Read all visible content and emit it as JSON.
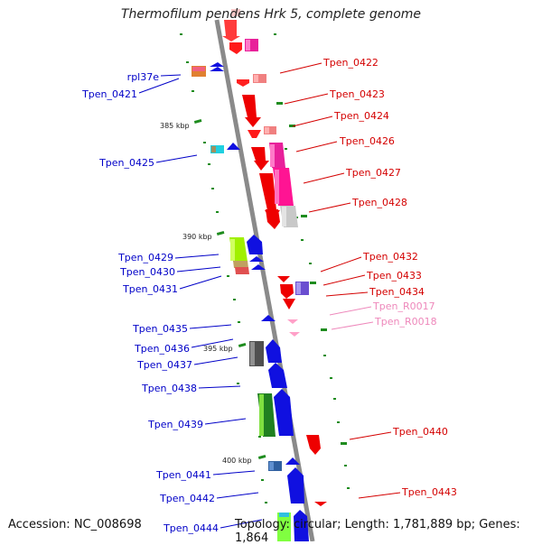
{
  "title": "Thermofilum pendens Hrk 5, complete genome",
  "footer": {
    "accession": "Accession: NC_008698",
    "summary": "Topology: circular; Length: 1,781,889 bp; Genes: 1,864"
  },
  "colors": {
    "backbone": "#8a8a8a",
    "label_left": "#0000c8",
    "label_right": "#d40000",
    "label_rna": "#ee88bb",
    "tick": "#1e8c1e"
  },
  "scale_labels": [
    "385 kbp",
    "390 kbp",
    "395 kbp",
    "400 kbp"
  ],
  "left_labels": [
    "rpl37e",
    "Tpen_0421",
    "Tpen_0425",
    "Tpen_0429",
    "Tpen_0430",
    "Tpen_0431",
    "Tpen_0435",
    "Tpen_0436",
    "Tpen_0437",
    "Tpen_0438",
    "Tpen_0439",
    "Tpen_0441",
    "Tpen_0442",
    "Tpen_0444"
  ],
  "right_labels": [
    "Tpen_0422",
    "Tpen_0423",
    "Tpen_0424",
    "Tpen_0426",
    "Tpen_0427",
    "Tpen_0428",
    "Tpen_0432",
    "Tpen_0433",
    "Tpen_0434",
    "Tpen_R0017",
    "Tpen_R0018",
    "Tpen_0440",
    "Tpen_0443"
  ]
}
